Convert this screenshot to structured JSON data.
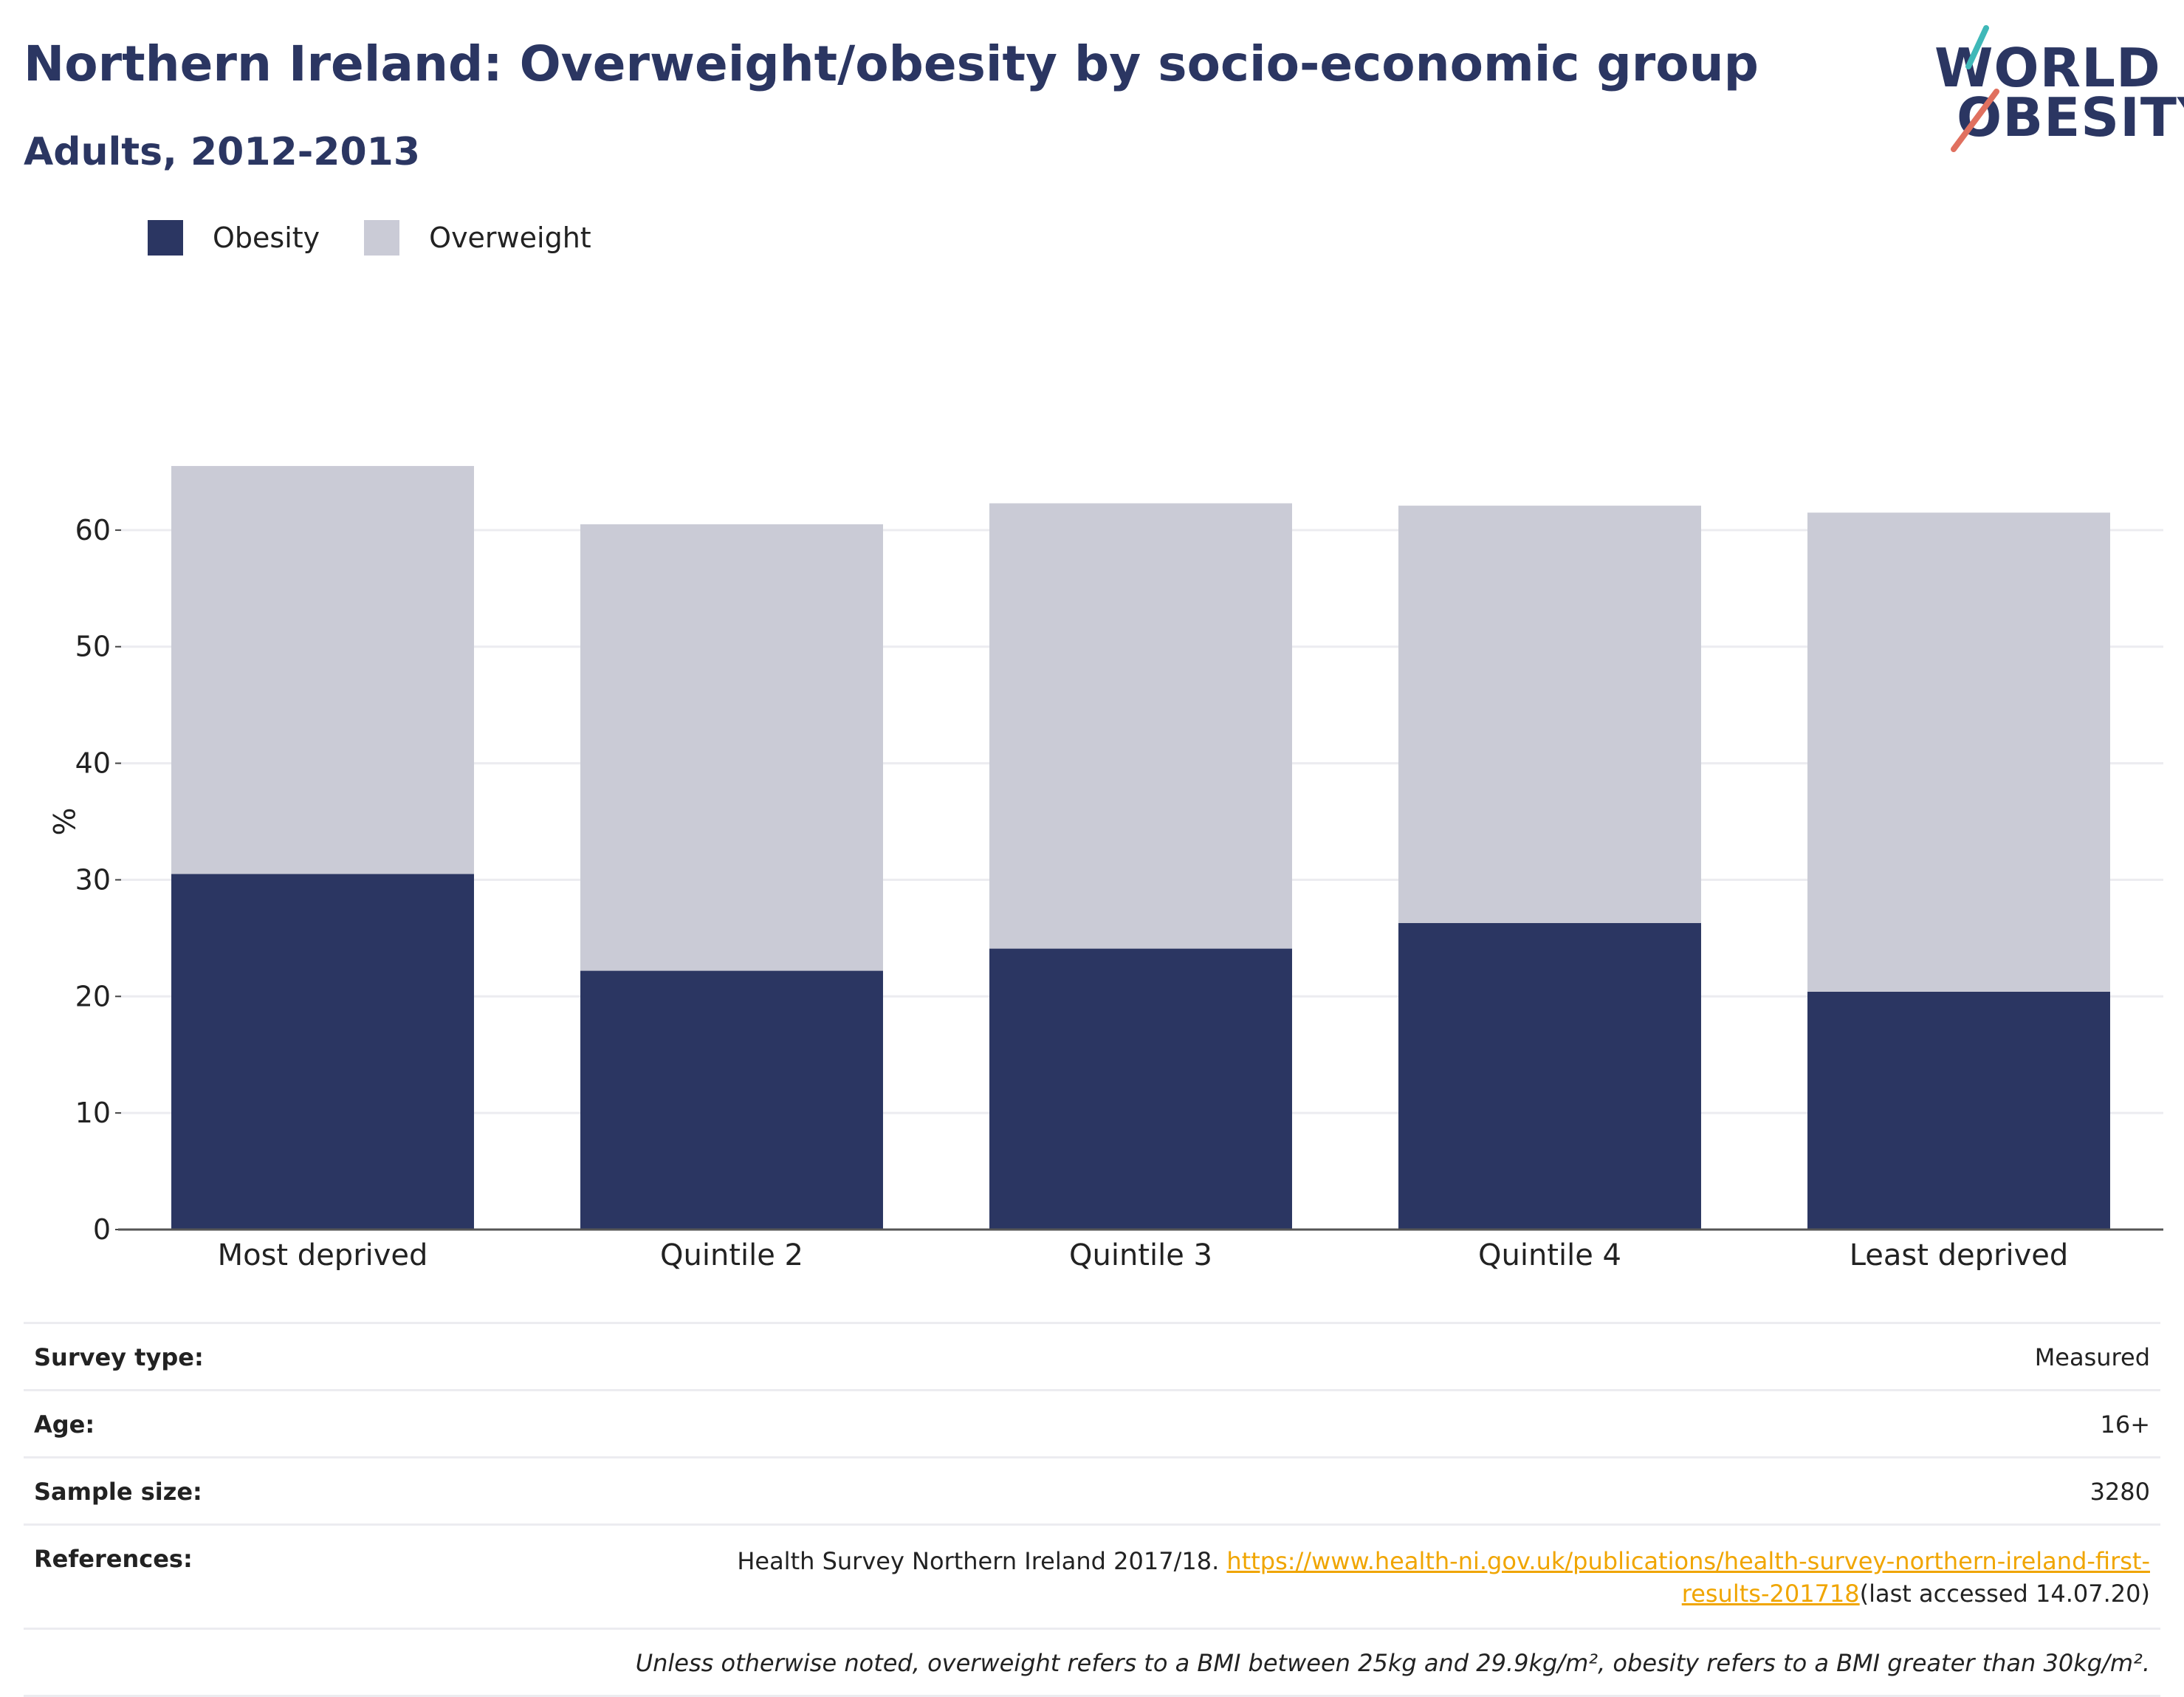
{
  "header": {
    "title": "Northern Ireland: Overweight/obesity by socio-economic group",
    "subtitle": "Adults, 2012-2013"
  },
  "logo": {
    "line1": "WORLD",
    "line2": "OBESITY"
  },
  "legend": {
    "items": [
      {
        "label": "Obesity",
        "color": "#2b3662"
      },
      {
        "label": "Overweight",
        "color": "#cacbd6"
      }
    ]
  },
  "chart_data": {
    "type": "bar",
    "stacked": true,
    "categories": [
      "Most deprived",
      "Quintile 2",
      "Quintile 3",
      "Quintile 4",
      "Least deprived"
    ],
    "series": [
      {
        "name": "Obesity",
        "color": "#2b3662",
        "values": [
          30.5,
          22.2,
          24.1,
          26.3,
          20.4
        ]
      },
      {
        "name": "Overweight",
        "color": "#cacbd6",
        "values": [
          35.0,
          38.3,
          38.2,
          35.8,
          41.1
        ]
      }
    ],
    "ylabel": "%",
    "xlabel": "",
    "ylim": [
      0,
      70
    ],
    "yticks": [
      0,
      10,
      20,
      30,
      40,
      50,
      60
    ],
    "grid": true,
    "legend_position": "top-left"
  },
  "info": {
    "survey_type": {
      "label": "Survey type:",
      "value": "Measured"
    },
    "age": {
      "label": "Age:",
      "value": "16+"
    },
    "sample_size": {
      "label": "Sample size:",
      "value": "3280"
    },
    "references": {
      "label": "References:",
      "text": "Health Survey Northern Ireland 2017/18. ",
      "link": "https://www.health-ni.gov.uk/publications/health-survey-northern-ireland-first-results-201718",
      "suffix": "(last accessed 14.07.20)"
    },
    "note": "Unless otherwise noted, overweight refers to a BMI between 25kg and 29.9kg/m², obesity refers to a BMI greater than 30kg/m²."
  }
}
